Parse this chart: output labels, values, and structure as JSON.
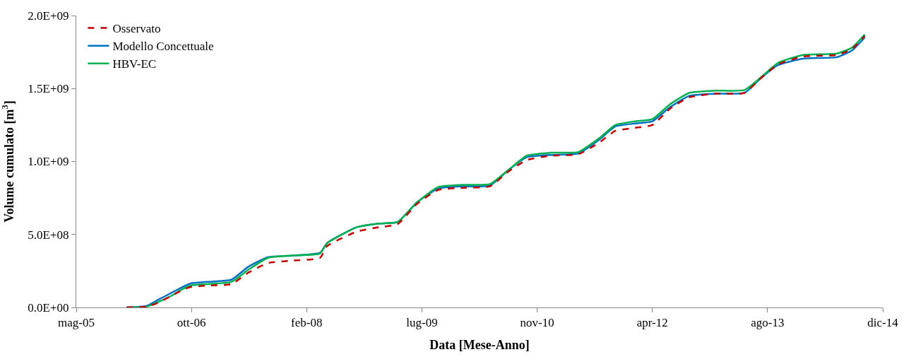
{
  "chart_data": {
    "type": "line",
    "xlabel": "Data [Mese-Anno]",
    "ylabel": "Volume cumulato [m$^{3}$]",
    "x": [
      "2006-01-01",
      "2006-03-28",
      "2006-05-15",
      "2006-07-15",
      "2006-09-01",
      "2006-10-07",
      "2006-12-15",
      "2007-04-01",
      "2007-06-15",
      "2007-09-08",
      "2007-12-15",
      "2008-04-20",
      "2008-05-20",
      "2008-09-27",
      "2009-01-01",
      "2009-03-22",
      "2009-06-15",
      "2009-09-14",
      "2010-01-01",
      "2010-04-27",
      "2010-07-15",
      "2010-10-04",
      "2011-01-15",
      "2011-05-16",
      "2011-08-15",
      "2011-10-23",
      "2012-01-15",
      "2012-04-01",
      "2012-06-15",
      "2012-09-08",
      "2013-01-01",
      "2013-05-06",
      "2013-07-15",
      "2013-09-28",
      "2014-01-15",
      "2014-06-11",
      "2014-08-15",
      "2014-10-10"
    ],
    "series": [
      {
        "name": "Osservato",
        "color": "#c00000",
        "line_style": "dashed",
        "values": [
          0,
          5000000.0,
          30000000.0,
          80000000.0,
          120000000.0,
          140000000.0,
          150000000.0,
          160000000.0,
          240000000.0,
          305000000.0,
          320000000.0,
          340000000.0,
          420000000.0,
          520000000.0,
          550000000.0,
          570000000.0,
          710000000.0,
          805000000.0,
          820000000.0,
          830000000.0,
          930000000.0,
          1010000000.0,
          1040000000.0,
          1050000000.0,
          1130000000.0,
          1210000000.0,
          1230000000.0,
          1250000000.0,
          1360000000.0,
          1440000000.0,
          1465000000.0,
          1470000000.0,
          1570000000.0,
          1665000000.0,
          1720000000.0,
          1730000000.0,
          1770000000.0,
          1860000000.0
        ]
      },
      {
        "name": "Modello Concettuale",
        "color": "#0070c0",
        "line_style": "solid",
        "values": [
          0,
          10000000.0,
          50000000.0,
          100000000.0,
          140000000.0,
          165000000.0,
          175000000.0,
          190000000.0,
          280000000.0,
          345000000.0,
          355000000.0,
          375000000.0,
          440000000.0,
          550000000.0,
          575000000.0,
          585000000.0,
          720000000.0,
          815000000.0,
          830000000.0,
          835000000.0,
          940000000.0,
          1030000000.0,
          1045000000.0,
          1055000000.0,
          1150000000.0,
          1240000000.0,
          1260000000.0,
          1275000000.0,
          1370000000.0,
          1450000000.0,
          1465000000.0,
          1470000000.0,
          1570000000.0,
          1660000000.0,
          1705000000.0,
          1715000000.0,
          1760000000.0,
          1850000000.0
        ]
      },
      {
        "name": "HBV-EC",
        "color": "#00b050",
        "line_style": "solid",
        "values": [
          0,
          5000000.0,
          35000000.0,
          80000000.0,
          125000000.0,
          150000000.0,
          160000000.0,
          175000000.0,
          260000000.0,
          340000000.0,
          355000000.0,
          370000000.0,
          440000000.0,
          550000000.0,
          575000000.0,
          585000000.0,
          720000000.0,
          825000000.0,
          840000000.0,
          845000000.0,
          940000000.0,
          1040000000.0,
          1060000000.0,
          1065000000.0,
          1160000000.0,
          1250000000.0,
          1275000000.0,
          1290000000.0,
          1390000000.0,
          1470000000.0,
          1485000000.0,
          1490000000.0,
          1575000000.0,
          1675000000.0,
          1730000000.0,
          1740000000.0,
          1780000000.0,
          1870000000.0
        ]
      }
    ],
    "xlim": [
      "2005-05-28",
      "2014-12-27"
    ],
    "xticks": [
      {
        "value": "2005-05-28",
        "label": "mag-05"
      },
      {
        "value": "2006-10-10",
        "label": "ott-06"
      },
      {
        "value": "2008-02-22",
        "label": "feb-08"
      },
      {
        "value": "2009-07-06",
        "label": "lug-09"
      },
      {
        "value": "2010-11-18",
        "label": "nov-10"
      },
      {
        "value": "2012-04-01",
        "label": "apr-12"
      },
      {
        "value": "2013-08-14",
        "label": "ago-13"
      },
      {
        "value": "2014-12-27",
        "label": "dic-14"
      }
    ],
    "ylim": [
      0,
      2000000000.0
    ],
    "yticks": [
      {
        "value": 0,
        "label": "0.0E+00"
      },
      {
        "value": 500000000.0,
        "label": "5.0E+08"
      },
      {
        "value": 1000000000.0,
        "label": "1.0E+09"
      },
      {
        "value": 1500000000.0,
        "label": "1.5E+09"
      },
      {
        "value": 2000000000.0,
        "label": "2.0E+09"
      }
    ],
    "legend": "top left",
    "grid": false,
    "marker": "none"
  }
}
